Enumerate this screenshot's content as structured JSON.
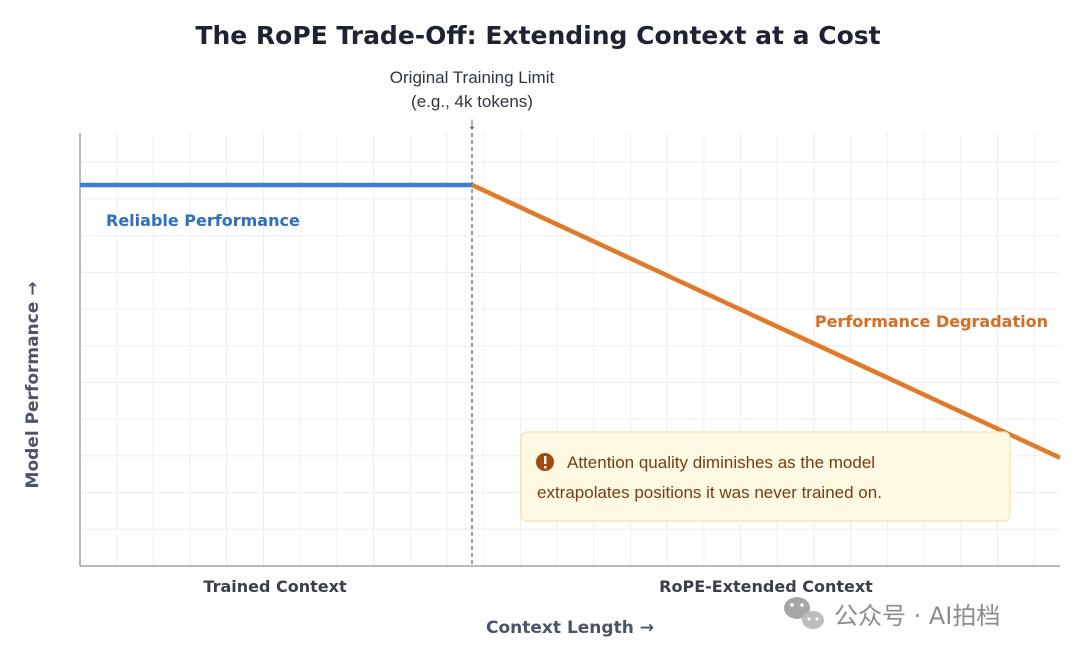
{
  "chart_data": {
    "type": "line",
    "title": "The RoPE Trade-Off: Extending Context at a Cost",
    "xlabel": "Context Length →",
    "ylabel": "Model Performance →",
    "xlim": [
      0,
      10
    ],
    "ylim": [
      0,
      10
    ],
    "grid": true,
    "training_limit": {
      "x": 4,
      "label_line1": "Original Training Limit",
      "label_line2": "(e.g., 4k tokens)",
      "arrow": "↓"
    },
    "series": [
      {
        "label": "Reliable Performance",
        "color": "#3b7ddd",
        "x": [
          0,
          4
        ],
        "y": [
          8.8,
          8.8
        ]
      },
      {
        "label": "Performance Degradation",
        "color": "#e87722",
        "x": [
          4,
          10
        ],
        "y": [
          8.8,
          2.5
        ]
      }
    ],
    "regions": [
      {
        "label": "Trained Context",
        "x_center": 2
      },
      {
        "label": "RoPE-Extended Context",
        "x_center": 7
      }
    ],
    "annotation": {
      "icon": "exclamation-circle-icon",
      "line1": "Attention quality diminishes as the model",
      "line2": "extrapolates positions it was never trained on."
    }
  },
  "watermark": {
    "icon": "wechat-icon",
    "text": "公众号 · AI拍档"
  },
  "colors": {
    "blue": "#3b7ddd",
    "orange": "#e87722",
    "blue_label": "#2a6fc9",
    "orange_label": "#e06a1c",
    "note_bg": "#fef9e3",
    "note_border": "#f3e3b0",
    "note_icon": "#a8470f"
  }
}
